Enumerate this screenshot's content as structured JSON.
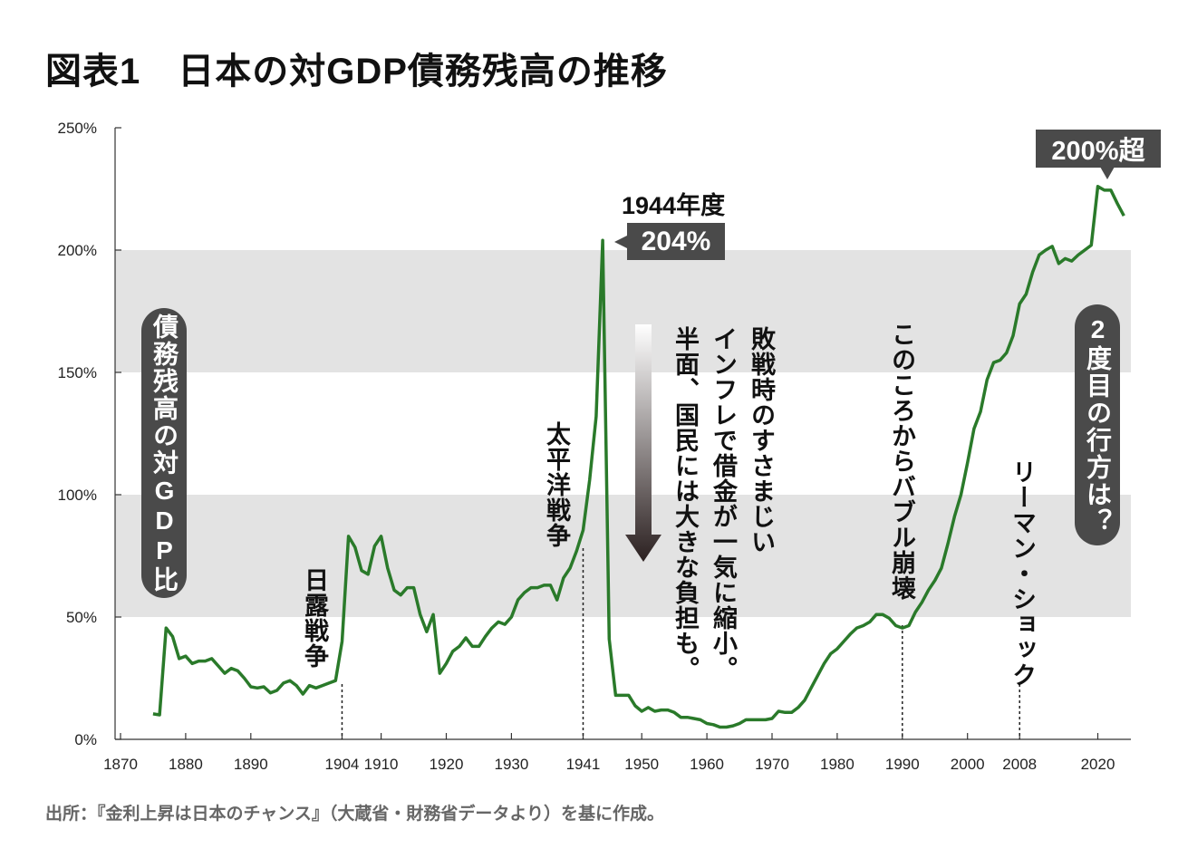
{
  "title": "図表1　日本の対GDP債務残高の推移",
  "source": "出所：『金利上昇は日本のチャンス』（大蔵省・財務省データより）を基に作成。",
  "chart_data": {
    "type": "line",
    "title": "図表1　日本の対GDP債務残高の推移",
    "ylabel": "債務残高の対GDP比",
    "xlim": [
      1870,
      2025
    ],
    "ylim": [
      0,
      250
    ],
    "y_ticks": [
      "0%",
      "50%",
      "100%",
      "150%",
      "200%",
      "250%"
    ],
    "y_tick_values": [
      0,
      50,
      100,
      150,
      200,
      250
    ],
    "x_ticks": [
      "1870",
      "1880",
      "1890",
      "1904",
      "1910",
      "1920",
      "1930",
      "1941",
      "1950",
      "1960",
      "1970",
      "1980",
      "1990",
      "2000",
      "2008",
      "2020"
    ],
    "shaded_bands": [
      [
        50,
        100
      ],
      [
        150,
        200
      ]
    ],
    "grid": false,
    "line_color": "#2a7a2a",
    "series": [
      {
        "x": [
          1875,
          1876,
          1877,
          1878,
          1879,
          1880,
          1881,
          1882,
          1883,
          1884,
          1885,
          1886,
          1887,
          1888,
          1889,
          1890,
          1891,
          1892,
          1893,
          1894,
          1895,
          1896,
          1897,
          1898,
          1899,
          1900,
          1901,
          1902,
          1903,
          1904,
          1905,
          1906,
          1907,
          1908,
          1909,
          1910,
          1911,
          1912,
          1913,
          1914,
          1915,
          1916,
          1917,
          1918,
          1919,
          1920,
          1921,
          1922,
          1923,
          1924,
          1925,
          1926,
          1927,
          1928,
          1929,
          1930,
          1931,
          1932,
          1933,
          1934,
          1935,
          1936,
          1937,
          1938,
          1939,
          1940,
          1941,
          1942,
          1943,
          1944,
          1945,
          1946,
          1947,
          1948,
          1949,
          1950,
          1951,
          1952,
          1953,
          1954,
          1955,
          1956,
          1957,
          1958,
          1959,
          1960,
          1961,
          1962,
          1963,
          1964,
          1965,
          1966,
          1967,
          1968,
          1969,
          1970,
          1971,
          1972,
          1973,
          1974,
          1975,
          1976,
          1977,
          1978,
          1979,
          1980,
          1981,
          1982,
          1983,
          1984,
          1985,
          1986,
          1987,
          1988,
          1989,
          1990,
          1991,
          1992,
          1993,
          1994,
          1995,
          1996,
          1997,
          1998,
          1999,
          2000,
          2001,
          2002,
          2003,
          2004,
          2005,
          2006,
          2007,
          2008,
          2009,
          2010,
          2011,
          2012,
          2013,
          2014,
          2015,
          2016,
          2017,
          2018,
          2019,
          2020,
          2021,
          2022,
          2023,
          2024
        ],
        "y": [
          10.4,
          10,
          45.5,
          42,
          33,
          34,
          31,
          32,
          32,
          33,
          30,
          27,
          29,
          28,
          25,
          21.5,
          21,
          21.5,
          19,
          20,
          23,
          24,
          22,
          18.5,
          22,
          21,
          22,
          23,
          24,
          40,
          83,
          78.5,
          69,
          67.5,
          79,
          83,
          70,
          61,
          59,
          62,
          62,
          51,
          44,
          51,
          27,
          31,
          36,
          38,
          41.5,
          38,
          38,
          42,
          45.5,
          48,
          47,
          50,
          57,
          60,
          62,
          62,
          63,
          63,
          57,
          66,
          70,
          77,
          85.5,
          106,
          132,
          204,
          41,
          18,
          18,
          18,
          13.7,
          11.5,
          13,
          11.5,
          12,
          12,
          11,
          9,
          9,
          8.5,
          8,
          6.5,
          6,
          5,
          5,
          5.5,
          6.5,
          8,
          8,
          8,
          8,
          8.5,
          11.5,
          11,
          11,
          13,
          16,
          21,
          26,
          31,
          35,
          37,
          40,
          43,
          45.5,
          46.5,
          48,
          51,
          51,
          49.5,
          46.5,
          45.5,
          46.5,
          52,
          56,
          61,
          65,
          70,
          80,
          91,
          100,
          113,
          127,
          134,
          147,
          154,
          155,
          158,
          165,
          178,
          182,
          191,
          198,
          200,
          201.5,
          194.5,
          196.5,
          195.5,
          198,
          200,
          202,
          226,
          224.5,
          224.5,
          219,
          214
        ]
      }
    ],
    "annotations": {
      "peak_year": "1944年度",
      "peak_value": "204%",
      "recent": "200%超",
      "russo_japanese_war": "日露戦争",
      "pacific_war": "太平洋戦争",
      "postwar_1": "敗戦時のすさまじい",
      "postwar_2": "インフレで借金が一気に縮小。",
      "postwar_3": "半面、国民には大きな負担も。",
      "bubble": "このころからバブル崩壊",
      "lehman": "リーマン・ショック",
      "second_time": "2度目の行方は？"
    },
    "event_years": [
      1904,
      1941,
      1990,
      2008
    ]
  }
}
